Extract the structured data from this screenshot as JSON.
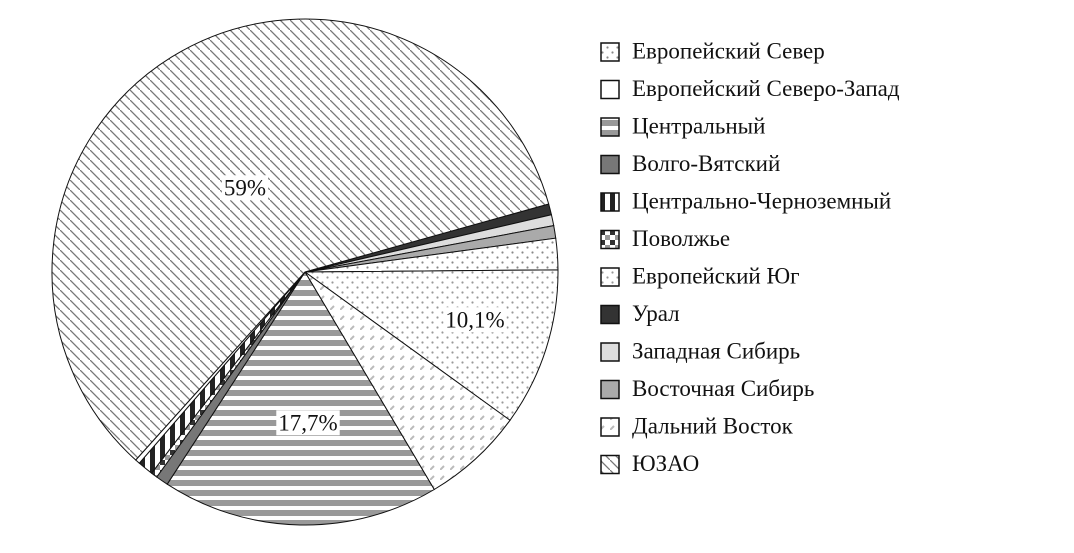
{
  "chart_data": {
    "type": "pie",
    "categories": [
      "Европейский Север",
      "Европейский Северо-Запад",
      "Центральный",
      "Волго-Вятский",
      "Центрально-Черноземный",
      "Поволжье",
      "Европейский Юг",
      "Урал",
      "Западная Сибирь",
      "Восточная Сибирь",
      "Дальний Восток",
      "ЮЗАО"
    ],
    "values": [
      2.0,
      0.3,
      17.7,
      0.8,
      1.0,
      0.4,
      10.1,
      0.7,
      0.7,
      0.8,
      6.5,
      59
    ],
    "value_labels": [
      null,
      null,
      "17,7%",
      null,
      null,
      null,
      "10,1%",
      null,
      null,
      null,
      null,
      "59%"
    ],
    "colors": [
      "#888888",
      "#ffffff",
      "#999999",
      "#777777",
      "#222222",
      "#333333",
      "#999999",
      "#333333",
      "#dddddd",
      "#aaaaaa",
      "#bbbbbb",
      "#777777"
    ],
    "legend": "right"
  }
}
